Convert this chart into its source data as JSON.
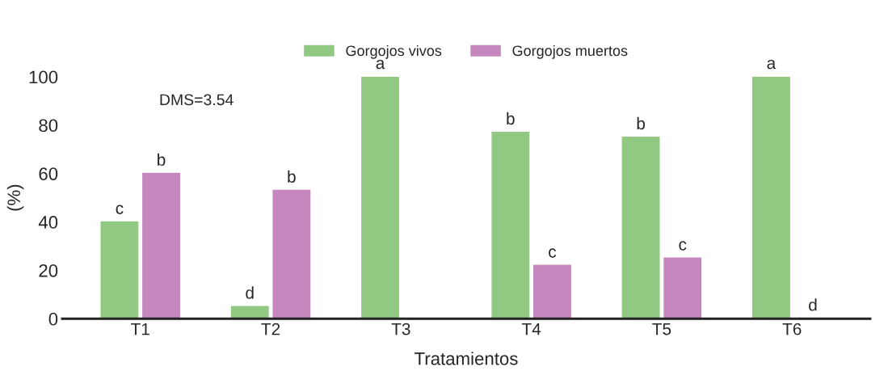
{
  "chart_data": {
    "type": "bar",
    "xlabel": "Tratamientos",
    "ylabel": "(%)",
    "categories": [
      "T1",
      "T2",
      "T3",
      "T4",
      "T5",
      "T6"
    ],
    "series": [
      {
        "name": "Gorgojos vivos",
        "color": "#92c982",
        "values": [
          40,
          5,
          100,
          77,
          75,
          100
        ]
      },
      {
        "name": "Gorgojos muertos",
        "color": "#c587bd",
        "values": [
          60,
          53,
          0,
          22,
          25,
          0
        ]
      }
    ],
    "ylim": [
      0,
      100
    ],
    "yticks": [
      0,
      20,
      40,
      60,
      80,
      100
    ],
    "grid": false,
    "legend": "top",
    "annotations": [
      "DMS=3.54",
      {
        "text": "c",
        "x": "T1",
        "y": 40
      },
      {
        "text": "b",
        "x": "T1",
        "y": 60
      },
      {
        "text": "d",
        "x": "T2",
        "y": 5
      },
      {
        "text": "b",
        "x": "T2",
        "y": 53
      },
      {
        "text": "a",
        "x": "T3",
        "y": 100
      },
      {
        "text": "b",
        "x": "T4",
        "y": 77
      },
      {
        "text": "c",
        "x": "T4",
        "y": 22
      },
      {
        "text": "b",
        "x": "T5",
        "y": 75
      },
      {
        "text": "c",
        "x": "T5",
        "y": 25
      },
      {
        "text": "a",
        "x": "T6",
        "y": 100
      },
      {
        "text": "d",
        "x": "T6",
        "y": 0
      }
    ]
  }
}
